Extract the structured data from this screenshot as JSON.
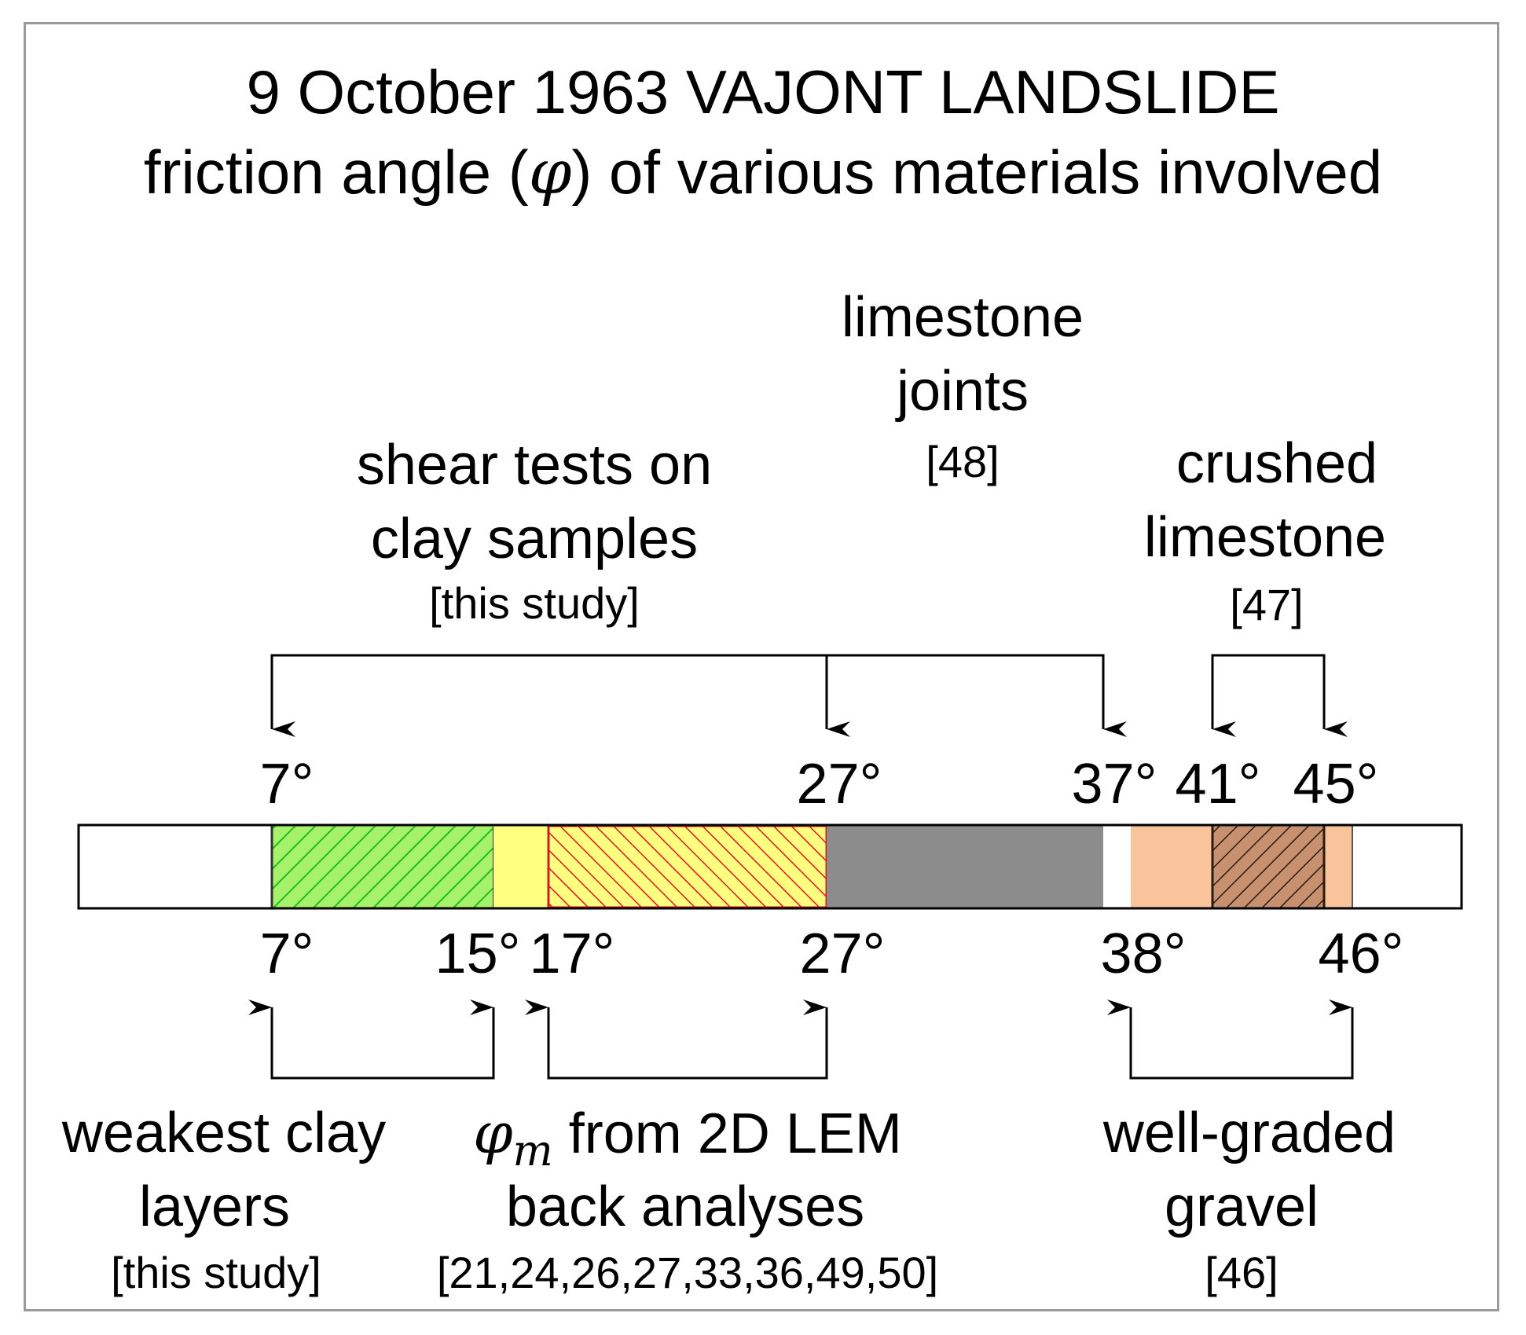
{
  "title": {
    "line1": "9 October 1963 VAJONT LANDSLIDE",
    "line2_prefix": "friction angle (",
    "line2_symbol": "φ",
    "line2_suffix": ") of various materials involved"
  },
  "top_groups": {
    "shear_tests": {
      "line1": "shear tests on",
      "line2": "clay samples",
      "ref": "[this study]"
    },
    "limestone_joints": {
      "line1": "limestone",
      "line2": "joints",
      "ref": "[48]"
    },
    "crushed_limestone": {
      "line1": "crushed",
      "line2": "limestone",
      "ref": "[47]"
    }
  },
  "bottom_groups": {
    "weakest_clay": {
      "line1": "weakest clay",
      "line2": "layers",
      "ref": "[this study]"
    },
    "lem": {
      "symbol": "φ",
      "subscript": "m",
      "line1_suffix": " from 2D LEM",
      "line2": "back analyses",
      "ref": "[21,24,26,27,33,36,49,50]"
    },
    "gravel": {
      "line1": "well-graded",
      "line2": "gravel",
      "ref": "[46]"
    }
  },
  "top_ticks": [
    "7°",
    "27°",
    "37°",
    "41°",
    "45°"
  ],
  "bottom_ticks": [
    "7°",
    "15°",
    "17°",
    "27°",
    "38°",
    "46°"
  ],
  "ranges": [
    {
      "name": "weakest clay layers",
      "from": 7,
      "to": 15,
      "fill": "#a6f26a",
      "hatch": "#1ebf1e"
    },
    {
      "name": "gap",
      "from": 15,
      "to": 17,
      "fill": "#ffff80"
    },
    {
      "name": "phi_m from 2D LEM back analyses",
      "from": 17,
      "to": 27,
      "fill": "#ffff80",
      "hatch": "#e0141e"
    },
    {
      "name": "shear tests on clay samples",
      "from": 27,
      "to": 37,
      "fill": "#8c8c8c"
    },
    {
      "name": "well-graded gravel",
      "from": 38,
      "to": 46,
      "fill": "#f9c39b"
    },
    {
      "name": "crushed limestone",
      "from": 41,
      "to": 45,
      "fill": "#c7906e",
      "hatch": "#2b1a10"
    }
  ],
  "colors": {
    "frame": "#9a9a9a",
    "bar_border": "#000000"
  }
}
